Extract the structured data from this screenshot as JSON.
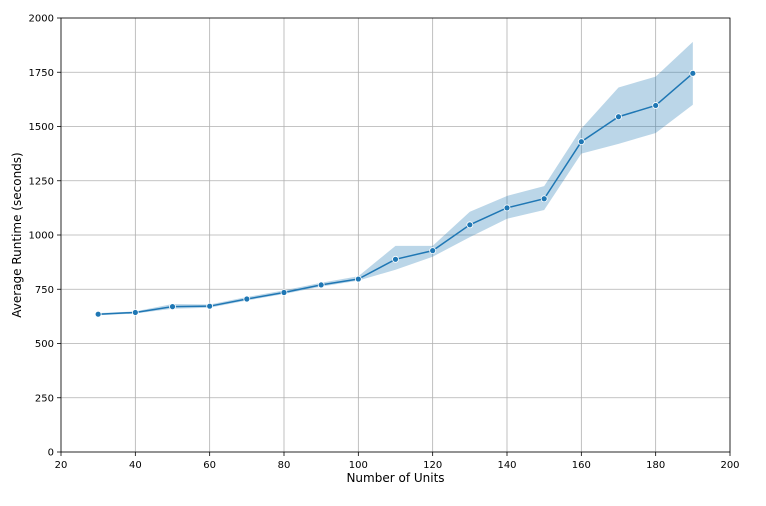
{
  "chart_data": {
    "type": "line",
    "title": "",
    "xlabel": "Number of Units",
    "ylabel": "Average Runtime (seconds)",
    "xlim": [
      20,
      200
    ],
    "ylim": [
      0,
      2000
    ],
    "xticks": [
      20,
      40,
      60,
      80,
      100,
      120,
      140,
      160,
      180,
      200
    ],
    "yticks": [
      0,
      250,
      500,
      750,
      1000,
      1250,
      1500,
      1750,
      2000
    ],
    "grid": true,
    "legend": "none",
    "colors": {
      "line": "#1f77b4",
      "band": "#1f77b4"
    },
    "series": [
      {
        "x": [
          30,
          40,
          50,
          60,
          70,
          80,
          90,
          100,
          110,
          120,
          130,
          140,
          150,
          160,
          170,
          180,
          190
        ],
        "y": [
          635,
          643,
          670,
          672,
          705,
          735,
          770,
          797,
          888,
          928,
          1047,
          1125,
          1167,
          1430,
          1545,
          1597,
          1745
        ],
        "ci_low": [
          630,
          638,
          660,
          665,
          698,
          728,
          762,
          790,
          840,
          900,
          990,
          1075,
          1115,
          1375,
          1420,
          1470,
          1600
        ],
        "ci_high": [
          640,
          648,
          682,
          680,
          714,
          745,
          780,
          810,
          950,
          950,
          1107,
          1180,
          1225,
          1490,
          1680,
          1730,
          1890
        ]
      }
    ]
  }
}
